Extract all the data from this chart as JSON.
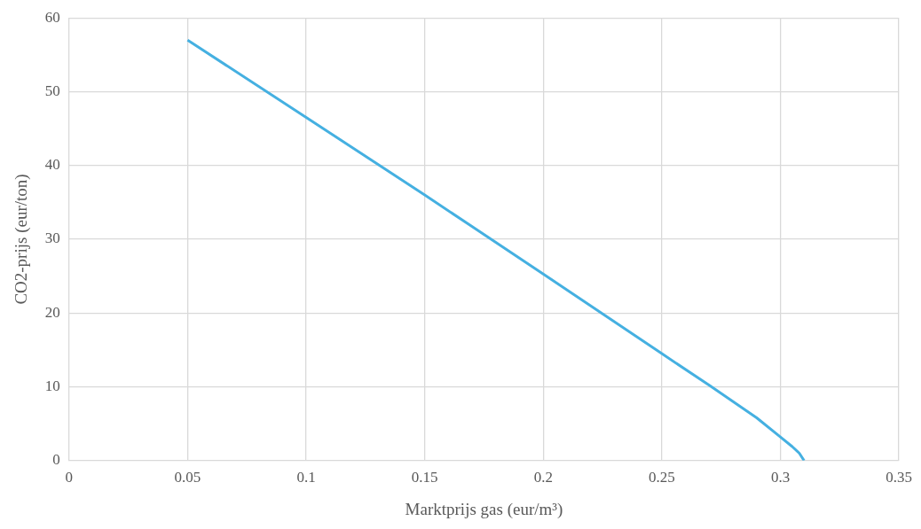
{
  "chart_data": {
    "type": "line",
    "xlabel": "Marktprijs gas (eur/m³)",
    "ylabel": "CO2-prijs (eur/ton)",
    "series": [
      {
        "color": "#45b0e1",
        "x": [
          0.05,
          0.1,
          0.15,
          0.2,
          0.25,
          0.27,
          0.29,
          0.3,
          0.305,
          0.308,
          0.31
        ],
        "values": [
          57,
          46.5,
          36,
          25.3,
          14.5,
          10.2,
          5.8,
          3.2,
          1.9,
          1,
          0
        ]
      }
    ],
    "xlim": [
      0,
      0.35
    ],
    "xticks": [
      0,
      0.05,
      0.1,
      0.15,
      0.2,
      0.25,
      0.3,
      0.35
    ],
    "ylim": [
      0,
      60
    ],
    "yticks": [
      0,
      10,
      20,
      30,
      40,
      50,
      60
    ],
    "grid": true,
    "legend": false,
    "marker": "none",
    "line_style": "solid"
  }
}
